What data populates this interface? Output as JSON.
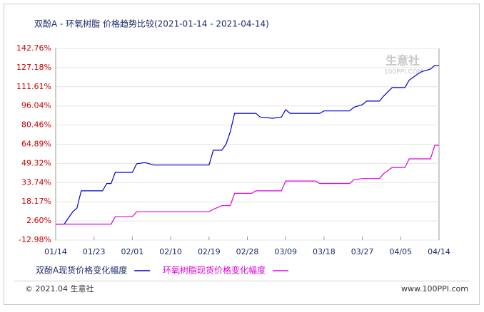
{
  "chart_data": {
    "type": "line",
    "title": "双酚A - 环氧树脂 价格趋势比较(2021-01-14 - 2021-04-14)",
    "x": [
      "01/14",
      "01/16",
      "01/17",
      "01/18",
      "01/19",
      "01/20",
      "01/25",
      "01/26",
      "01/27",
      "01/28",
      "02/01",
      "02/02",
      "02/04",
      "02/06",
      "02/19",
      "02/20",
      "02/22",
      "02/23",
      "02/24",
      "02/25",
      "03/01",
      "03/02",
      "03/03",
      "03/06",
      "03/08",
      "03/09",
      "03/10",
      "03/16",
      "03/17",
      "03/18",
      "03/24",
      "03/25",
      "03/27",
      "03/28",
      "03/31",
      "04/01",
      "04/03",
      "04/06",
      "04/07",
      "04/09",
      "04/10",
      "04/12",
      "04/13",
      "04/14"
    ],
    "xlim": [
      "01/14",
      "04/14"
    ],
    "xticks": [
      "01/14",
      "01/23",
      "02/01",
      "02/10",
      "02/19",
      "02/28",
      "03/09",
      "03/18",
      "03/27",
      "04/05",
      "04/14"
    ],
    "series": [
      {
        "name": "双酚A现货价格变化幅度",
        "color": "#0000cc",
        "values": [
          0,
          0,
          5,
          10,
          13,
          27,
          27,
          33,
          33,
          42,
          42,
          49,
          50,
          48,
          48,
          60,
          60,
          65,
          75,
          90,
          90,
          90,
          87,
          86,
          87,
          93,
          90,
          90,
          90,
          92,
          92,
          95,
          97,
          100,
          100,
          104,
          111,
          111,
          117,
          122,
          124,
          126,
          129,
          129
        ]
      },
      {
        "name": "环氧树脂现货价格变化幅度",
        "color": "#dd00dd",
        "values": [
          0,
          0,
          0,
          0,
          0,
          0,
          0,
          0,
          0,
          6,
          6,
          10,
          10,
          10,
          10,
          12,
          15,
          15,
          15,
          25,
          25,
          27,
          27,
          27,
          27,
          35,
          35,
          35,
          33,
          33,
          33,
          36,
          37,
          37,
          37,
          41,
          46,
          46,
          53,
          53,
          53,
          53,
          64,
          64
        ]
      }
    ],
    "ylim": [
      -12.98,
      142.76
    ],
    "yticks": [
      {
        "value": -12.98,
        "label": "-12.98%"
      },
      {
        "value": 2.6,
        "label": "2.60%"
      },
      {
        "value": 18.17,
        "label": "18.17%"
      },
      {
        "value": 33.74,
        "label": "33.74%"
      },
      {
        "value": 49.32,
        "label": "49.32%"
      },
      {
        "value": 64.89,
        "label": "64.89%"
      },
      {
        "value": 80.46,
        "label": "80.46%"
      },
      {
        "value": 96.04,
        "label": "96.04%"
      },
      {
        "value": 111.61,
        "label": "111.61%"
      },
      {
        "value": 127.18,
        "label": "127.18%"
      },
      {
        "value": 142.76,
        "label": "142.76%"
      }
    ],
    "grid": true,
    "watermark": [
      "生意社",
      "100PPI.COM"
    ],
    "footer": [
      "© 2021.04 生意社",
      "www.100PPI.com"
    ]
  }
}
